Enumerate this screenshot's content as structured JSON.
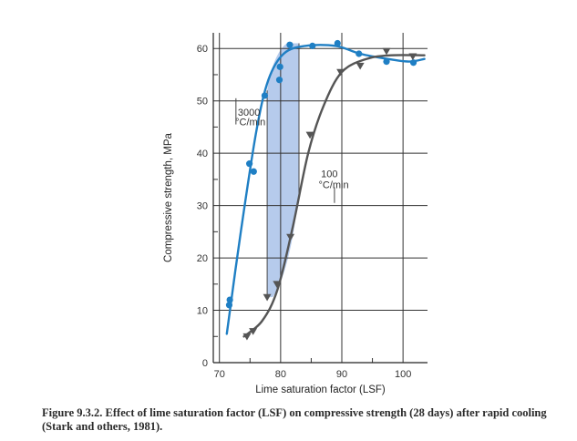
{
  "chart_data": {
    "type": "scatter",
    "xlabel": "Lime saturation factor (LSF)",
    "ylabel": "Compressive strength, MPa",
    "xlim": [
      69,
      104
    ],
    "ylim": [
      0,
      63
    ],
    "x_ticks": [
      "70",
      "80",
      "90",
      "100"
    ],
    "y_ticks": [
      "0",
      "10",
      "20",
      "30",
      "40",
      "50",
      "60"
    ],
    "grid": true,
    "series": [
      {
        "name": "3000 °C/min",
        "label_lines": [
          "3000",
          "°C/min"
        ],
        "color": "#1f7fc4",
        "marker": "circle",
        "points": [
          [
            71.6,
            11
          ],
          [
            71.7,
            12
          ],
          [
            74.9,
            38
          ],
          [
            75.6,
            36.5
          ],
          [
            77.4,
            51
          ],
          [
            79.8,
            54
          ],
          [
            79.9,
            56.5
          ],
          [
            81.5,
            60.7
          ],
          [
            85.2,
            60.5
          ],
          [
            89.3,
            61
          ],
          [
            92.8,
            59
          ],
          [
            97.3,
            57.5
          ],
          [
            101.7,
            57.3
          ]
        ],
        "curve": [
          [
            71.2,
            5.5
          ],
          [
            73.5,
            25
          ],
          [
            76,
            44
          ],
          [
            78,
            54
          ],
          [
            80.5,
            59
          ],
          [
            84,
            60.5
          ],
          [
            89,
            60.5
          ],
          [
            93,
            59
          ],
          [
            97.5,
            58
          ],
          [
            101,
            57.5
          ],
          [
            103.5,
            58
          ]
        ]
      },
      {
        "name": "100 °C/min",
        "label_lines": [
          "100",
          "°C/min"
        ],
        "color": "#555555",
        "marker": "triangle-down",
        "points": [
          [
            74.5,
            5
          ],
          [
            75.5,
            6
          ],
          [
            77.8,
            12.5
          ],
          [
            79.4,
            15
          ],
          [
            81.6,
            24
          ],
          [
            84.8,
            43.5
          ],
          [
            89.8,
            55.5
          ],
          [
            93,
            56.7
          ],
          [
            97.3,
            59.5
          ],
          [
            101.6,
            58.5
          ]
        ],
        "curve": [
          [
            74,
            5
          ],
          [
            77,
            8
          ],
          [
            79.5,
            14
          ],
          [
            82,
            26
          ],
          [
            84.5,
            40
          ],
          [
            87,
            49
          ],
          [
            90,
            55.5
          ],
          [
            94,
            58
          ],
          [
            98,
            58.7
          ],
          [
            103.5,
            58.7
          ]
        ]
      }
    ],
    "shaded_band": {
      "color": "#a9c2e9",
      "x_from": 77.8,
      "x_to": 83
    }
  },
  "caption": "Figure 9.3.2. Effect of lime saturation factor (LSF) on compressive strength (28 days) after rapid cooling (Stark and others, 1981)."
}
